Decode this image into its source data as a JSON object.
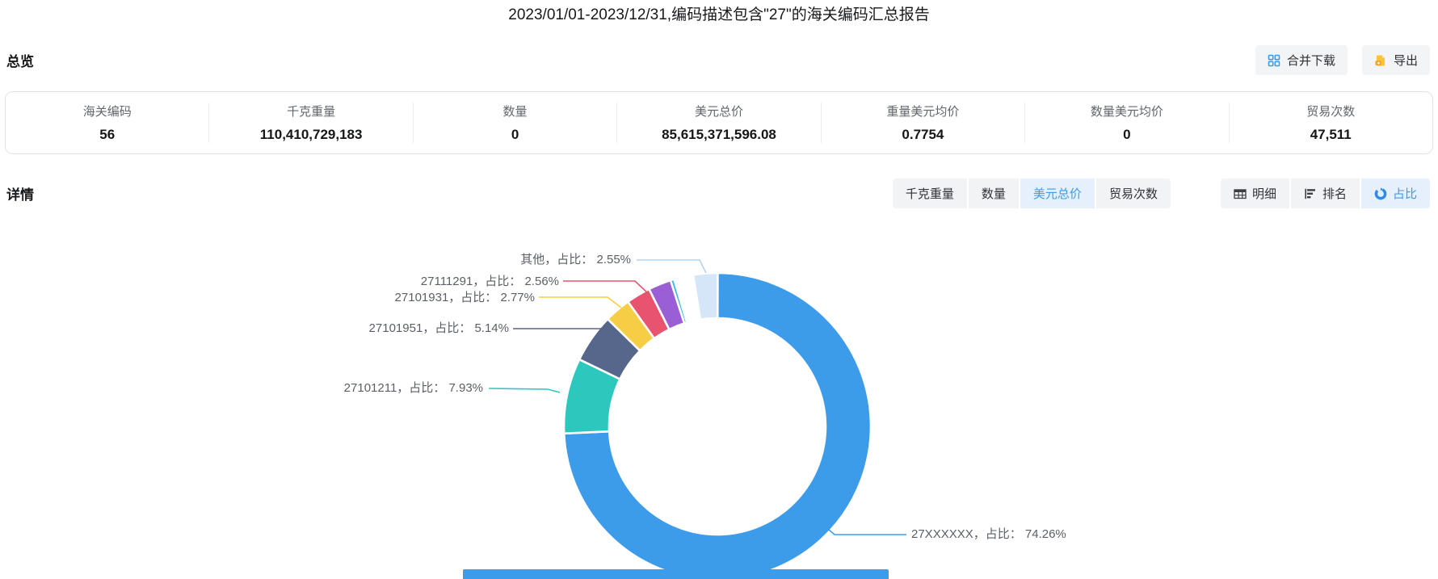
{
  "title": "2023/01/01-2023/12/31,编码描述包含\"27\"的海关编码汇总报告",
  "overview": {
    "heading": "总览",
    "merge_download_label": "合并下载",
    "export_label": "导出",
    "stats": [
      {
        "label": "海关编码",
        "value": "56"
      },
      {
        "label": "千克重量",
        "value": "110,410,729,183"
      },
      {
        "label": "数量",
        "value": "0"
      },
      {
        "label": "美元总价",
        "value": "85,615,371,596.08"
      },
      {
        "label": "重量美元均价",
        "value": "0.7754"
      },
      {
        "label": "数量美元均价",
        "value": "0"
      },
      {
        "label": "贸易次数",
        "value": "47,511"
      }
    ]
  },
  "details": {
    "heading": "详情",
    "metric_tabs": [
      {
        "label": "千克重量",
        "active": false
      },
      {
        "label": "数量",
        "active": false
      },
      {
        "label": "美元总价",
        "active": true
      },
      {
        "label": "贸易次数",
        "active": false
      }
    ],
    "view_tabs": [
      {
        "label": "明细",
        "icon": "table-icon",
        "active": false
      },
      {
        "label": "排名",
        "icon": "ranking-icon",
        "active": false
      },
      {
        "label": "占比",
        "icon": "donut-icon",
        "active": true
      }
    ]
  },
  "chart_data": {
    "type": "pie",
    "subtype": "donut",
    "metric": "美元总价",
    "unit": "percent",
    "legend_position": "none",
    "segments": [
      {
        "label": "27XXXXXX",
        "value": 74.26,
        "color": "#3d9ce9"
      },
      {
        "label": "27101211",
        "value": 7.93,
        "color": "#2dc8bd"
      },
      {
        "label": "27101951",
        "value": 5.14,
        "color": "#57678c"
      },
      {
        "label": "27101931",
        "value": 2.77,
        "color": "#f6ce45"
      },
      {
        "label": "27111291",
        "value": 2.56,
        "color": "#e8536f"
      },
      {
        "label": "",
        "value": 2.4,
        "color": "#9b5fd5",
        "estimated": true
      },
      {
        "label": "",
        "value": 0.4,
        "color": "#3cb8e8",
        "estimated": true
      },
      {
        "label": "",
        "value": 0.12,
        "color": "#f0a860",
        "estimated": true
      },
      {
        "label": "",
        "value": 0.1,
        "color": "#f09a9a",
        "estimated": true
      },
      {
        "label": "",
        "value": 1.8,
        "color": "#ffffff",
        "estimated": true
      },
      {
        "label": "其他",
        "value": 2.55,
        "color": "#d5e6f8"
      }
    ],
    "callouts": [
      {
        "text": "其他，占比： 2.55%",
        "color": "#b3d3f2"
      },
      {
        "text": "27111291，占比： 2.56%",
        "color": "#e8536f"
      },
      {
        "text": "27101931，占比： 2.77%",
        "color": "#f6ce45"
      },
      {
        "text": "27101951，占比： 5.14%",
        "color": "#57678c"
      },
      {
        "text": "27101211，占比： 7.93%",
        "color": "#2dc8bd"
      },
      {
        "text": "27XXXXXX，占比： 74.26%",
        "color": "#3d9ce9"
      }
    ]
  }
}
